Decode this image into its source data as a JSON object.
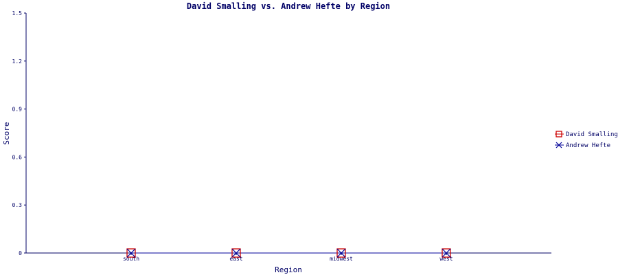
{
  "chart_data": {
    "type": "line",
    "title": "David Smalling vs. Andrew Hefte by Region",
    "xlabel": "Region",
    "ylabel": "Score",
    "categories": [
      "south",
      "east",
      "midwest",
      "west"
    ],
    "ylim": [
      0,
      1.5
    ],
    "yticks": [
      "0",
      "0.3",
      "0.6",
      "0.9",
      "1.2",
      "1.5"
    ],
    "series": [
      {
        "name": "David Smalling",
        "values": [
          0,
          0,
          0,
          0
        ],
        "color": "#cc0000",
        "marker": "square"
      },
      {
        "name": "Andrew Hefte",
        "values": [
          0,
          0,
          0,
          0
        ],
        "color": "#000099",
        "marker": "x"
      }
    ],
    "legend": "right",
    "grid": false
  }
}
